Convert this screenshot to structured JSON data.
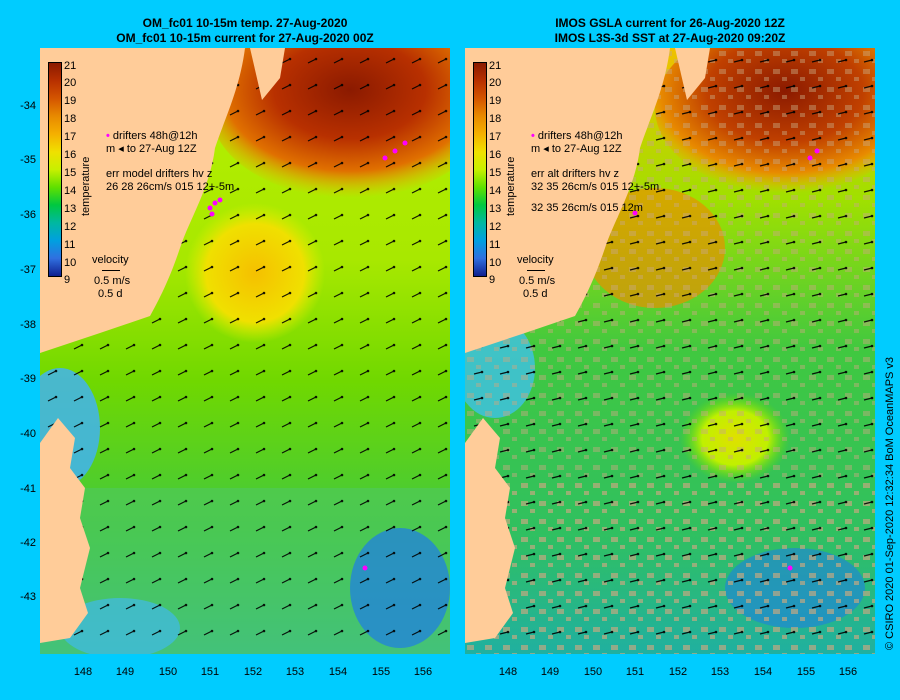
{
  "left_panel": {
    "title_line1": "OM_fc01 10-15m temp. 27-Aug-2020",
    "title_line2": "OM_fc01 10-15m current for 27-Aug-2020 00Z",
    "legend": {
      "drifters": "drifters 48h@12h",
      "to": "to 27-Aug 12Z",
      "err_header": "err model drifters hv z",
      "err_values": "26 28 26cm/s 015 12+-5m",
      "label_m": "m"
    },
    "velocity": {
      "title": "velocity",
      "speed": "0.5 m/s",
      "time": "0.5 d"
    }
  },
  "right_panel": {
    "title_line1": "IMOS GSLA current for 26-Aug-2020 12Z",
    "title_line2": "IMOS L3S-3d SST at 27-Aug-2020 09:20Z",
    "legend": {
      "drifters": "drifters 48h@12h",
      "to": "to 27-Aug 12Z",
      "err_header": "err alt drifters hv z",
      "err_values": "32 35 26cm/s 015 12+-5m",
      "err_values2": "32 35 26cm/s 015 12m",
      "label_m": "m"
    },
    "velocity": {
      "title": "velocity",
      "speed": "0.5 m/s",
      "time": "0.5 d"
    }
  },
  "colorbar": {
    "label": "temperature",
    "ticks": [
      "21",
      "20",
      "19",
      "18",
      "17",
      "16",
      "15",
      "14",
      "13",
      "12",
      "11",
      "10",
      "9"
    ],
    "colors": [
      "#8b1a00",
      "#b83000",
      "#d45500",
      "#e88a00",
      "#f5b000",
      "#f0e000",
      "#c8f000",
      "#60e000",
      "#00c840",
      "#00b8a0",
      "#00a0e0",
      "#3070e0",
      "#102090"
    ]
  },
  "lat_labels": [
    "-34",
    "-35",
    "-36",
    "-37",
    "-38",
    "-39",
    "-40",
    "-41",
    "-42",
    "-43"
  ],
  "lon_labels": [
    "148",
    "149",
    "150",
    "151",
    "152",
    "153",
    "154",
    "155",
    "156"
  ],
  "credit": "© CSIRO 2020   01-Sep-2020 12:32:34 BoM OceanMAPS v3",
  "colors": {
    "background": "#00ccff",
    "land": "#ffcc99",
    "warm_core": "#a52a00",
    "cool_sea": "#40c8ff",
    "drifter": "#ff00ff",
    "cloud": "#c8a880"
  }
}
